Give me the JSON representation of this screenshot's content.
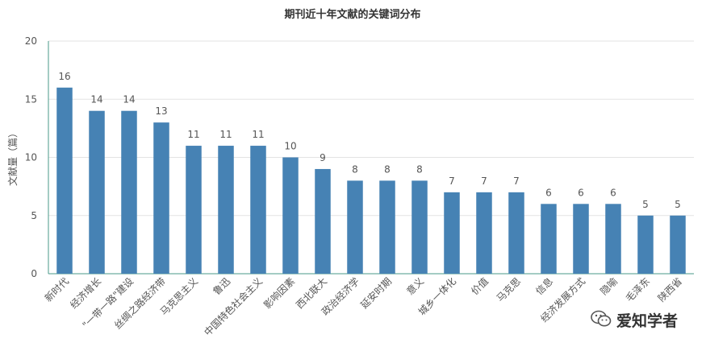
{
  "chart_data": {
    "type": "bar",
    "title": "期刊近十年文献的关键词分布",
    "xlabel": "",
    "ylabel": "文献量（篇）",
    "ylim": [
      0,
      20
    ],
    "yticks": [
      0,
      5,
      10,
      15,
      20
    ],
    "grid": true,
    "legend": "none",
    "bar_color": "#4682b4",
    "categories": [
      "新时代",
      "经济增长",
      "\"一带一路\"建设",
      "丝绸之路经济带",
      "马克思主义",
      "鲁迅",
      "中国特色社会主义",
      "影响因素",
      "西北联大",
      "政治经济学",
      "延安时期",
      "意义",
      "城乡一体化",
      "价值",
      "马克思",
      "信息",
      "经济发展方式",
      "隐喻",
      "毛泽东",
      "陕西省"
    ],
    "values": [
      16,
      14,
      14,
      13,
      11,
      11,
      11,
      10,
      9,
      8,
      8,
      8,
      7,
      7,
      7,
      6,
      6,
      6,
      5,
      5
    ]
  },
  "watermark": {
    "text": "爱知学者",
    "icon": "wechat-icon"
  },
  "colors": {
    "axis": "#4a9a8a",
    "grid": "#e3e3e3",
    "text": "#555555"
  }
}
